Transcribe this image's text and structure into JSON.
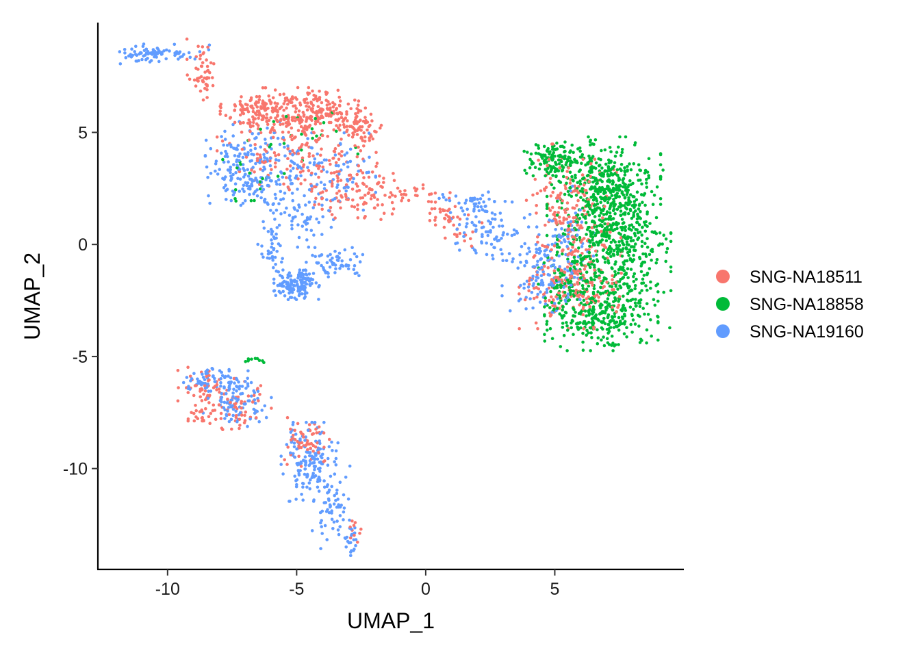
{
  "chart_data": {
    "type": "scatter",
    "title": "",
    "xlabel": "UMAP_1",
    "ylabel": "UMAP_2",
    "xlim": [
      -12.7,
      10.0
    ],
    "ylim": [
      -14.5,
      9.9
    ],
    "x_ticks": [
      -10,
      -5,
      0,
      5
    ],
    "x_tick_labels": [
      "-10",
      "-5",
      "0",
      "5"
    ],
    "y_ticks": [
      -10,
      -5,
      0,
      5
    ],
    "y_tick_labels": [
      "-10",
      "-5",
      "0",
      "5"
    ],
    "grid": false,
    "legend_position": "right",
    "series": [
      {
        "name": "SNG-NA18511",
        "color": "#F8766D",
        "clusters": [
          {
            "cx": -8.7,
            "cy": 7.8,
            "sx": 0.25,
            "sy": 0.7,
            "n": 50
          },
          {
            "cx": -6.2,
            "cy": 6.0,
            "sx": 0.8,
            "sy": 0.45,
            "n": 180
          },
          {
            "cx": -4.2,
            "cy": 5.9,
            "sx": 0.7,
            "sy": 0.5,
            "n": 160
          },
          {
            "cx": -2.6,
            "cy": 5.3,
            "sx": 0.5,
            "sy": 0.5,
            "n": 80
          },
          {
            "cx": -5.0,
            "cy": 4.2,
            "sx": 1.4,
            "sy": 0.8,
            "n": 140
          },
          {
            "cx": -3.0,
            "cy": 2.3,
            "sx": 0.8,
            "sy": 0.6,
            "n": 90
          },
          {
            "cx": -1.2,
            "cy": 2.4,
            "sx": 0.5,
            "sy": 0.35,
            "n": 40
          },
          {
            "cx": 0.6,
            "cy": 1.6,
            "sx": 0.4,
            "sy": 0.4,
            "n": 30
          },
          {
            "cx": 1.3,
            "cy": 0.6,
            "sx": 0.4,
            "sy": 0.35,
            "n": 20
          },
          {
            "cx": 5.0,
            "cy": 2.5,
            "sx": 0.5,
            "sy": 0.9,
            "n": 40
          },
          {
            "cx": 5.8,
            "cy": 0.5,
            "sx": 0.8,
            "sy": 1.5,
            "n": 180
          },
          {
            "cx": 5.6,
            "cy": -2.0,
            "sx": 0.9,
            "sy": 0.8,
            "n": 140
          },
          {
            "cx": -8.5,
            "cy": -6.3,
            "sx": 0.5,
            "sy": 0.4,
            "n": 40
          },
          {
            "cx": -8.7,
            "cy": -7.4,
            "sx": 0.25,
            "sy": 0.3,
            "n": 25
          },
          {
            "cx": -7.3,
            "cy": -7.3,
            "sx": 0.6,
            "sy": 0.6,
            "n": 60
          },
          {
            "cx": -4.6,
            "cy": -8.8,
            "sx": 0.45,
            "sy": 0.5,
            "n": 60
          },
          {
            "cx": -2.8,
            "cy": -13.0,
            "sx": 0.15,
            "sy": 0.3,
            "n": 10
          }
        ]
      },
      {
        "name": "SNG-NA18858",
        "color": "#00BA38",
        "clusters": [
          {
            "cx": 5.0,
            "cy": 3.8,
            "sx": 0.6,
            "sy": 0.35,
            "n": 120
          },
          {
            "cx": 6.9,
            "cy": 2.6,
            "sx": 1.0,
            "sy": 1.0,
            "n": 350
          },
          {
            "cx": 7.3,
            "cy": -0.2,
            "sx": 1.0,
            "sy": 1.6,
            "n": 550
          },
          {
            "cx": 6.8,
            "cy": -3.2,
            "sx": 1.0,
            "sy": 0.7,
            "n": 250
          },
          {
            "cx": 5.4,
            "cy": -1.5,
            "sx": 0.5,
            "sy": 1.0,
            "n": 80
          },
          {
            "cx": -6.8,
            "cy": 3.6,
            "sx": 0.6,
            "sy": 0.9,
            "n": 20
          },
          {
            "cx": -4.5,
            "cy": 4.6,
            "sx": 0.9,
            "sy": 0.9,
            "n": 18
          },
          {
            "cx": -6.6,
            "cy": -5.2,
            "sx": 0.25,
            "sy": 0.12,
            "n": 10
          }
        ]
      },
      {
        "name": "SNG-NA19160",
        "color": "#619CFF",
        "clusters": [
          {
            "cx": -11.0,
            "cy": 8.5,
            "sx": 0.5,
            "sy": 0.2,
            "n": 50
          },
          {
            "cx": -9.7,
            "cy": 8.6,
            "sx": 0.6,
            "sy": 0.15,
            "n": 30
          },
          {
            "cx": -7.0,
            "cy": 3.5,
            "sx": 0.7,
            "sy": 0.9,
            "n": 160
          },
          {
            "cx": -4.8,
            "cy": 3.0,
            "sx": 1.3,
            "sy": 0.9,
            "n": 150
          },
          {
            "cx": -5.2,
            "cy": 1.2,
            "sx": 0.7,
            "sy": 0.6,
            "n": 60
          },
          {
            "cx": -5.0,
            "cy": -1.8,
            "sx": 0.4,
            "sy": 0.3,
            "n": 140
          },
          {
            "cx": -3.5,
            "cy": -0.8,
            "sx": 0.6,
            "sy": 0.3,
            "n": 60
          },
          {
            "cx": -5.8,
            "cy": -0.4,
            "sx": 0.25,
            "sy": 0.4,
            "n": 25
          },
          {
            "cx": 1.8,
            "cy": 1.8,
            "sx": 0.6,
            "sy": 0.3,
            "n": 40
          },
          {
            "cx": 2.5,
            "cy": 0.6,
            "sx": 0.7,
            "sy": 0.6,
            "n": 80
          },
          {
            "cx": 4.5,
            "cy": -1.2,
            "sx": 0.7,
            "sy": 0.9,
            "n": 120
          },
          {
            "cx": 5.4,
            "cy": 0.4,
            "sx": 0.5,
            "sy": 1.0,
            "n": 60
          },
          {
            "cx": -8.5,
            "cy": -6.0,
            "sx": 0.4,
            "sy": 0.25,
            "n": 40
          },
          {
            "cx": -7.3,
            "cy": -6.8,
            "sx": 0.6,
            "sy": 0.6,
            "n": 110
          },
          {
            "cx": -4.5,
            "cy": -9.7,
            "sx": 0.5,
            "sy": 0.8,
            "n": 150
          },
          {
            "cx": -3.5,
            "cy": -11.8,
            "sx": 0.45,
            "sy": 0.9,
            "n": 60
          },
          {
            "cx": -2.9,
            "cy": -13.1,
            "sx": 0.15,
            "sy": 0.4,
            "n": 20
          }
        ]
      }
    ]
  }
}
